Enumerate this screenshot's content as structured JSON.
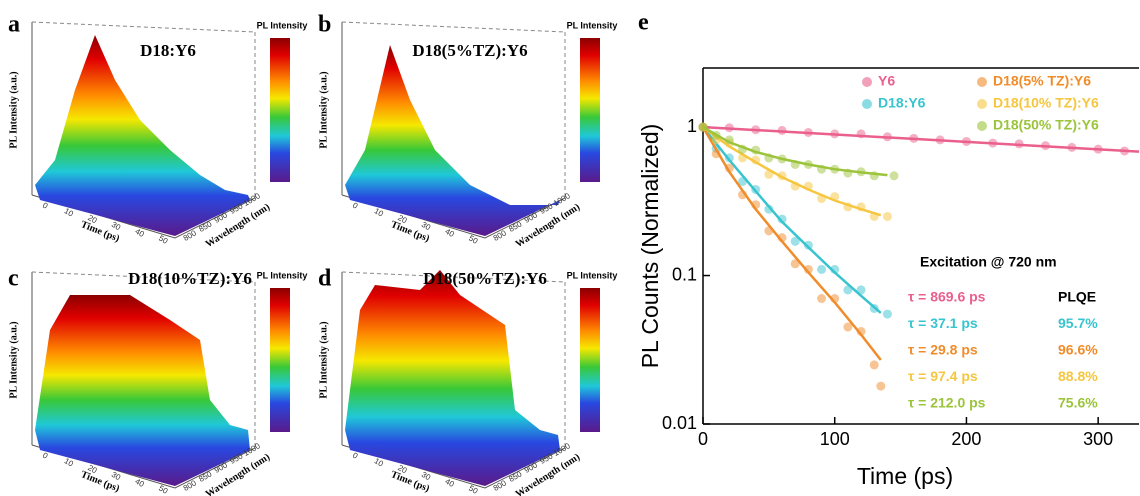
{
  "panels": [
    {
      "label": "a",
      "title": "D18:Y6"
    },
    {
      "label": "b",
      "title": "D18(5%TZ):Y6"
    },
    {
      "label": "c",
      "title": "D18(10%TZ):Y6"
    },
    {
      "label": "d",
      "title": "D18(50%TZ):Y6"
    }
  ],
  "colorbar_label": "PL Intensity",
  "z_label": "PL Intensity (a.u.)",
  "time_label": "Time (ps)",
  "wavelength_label": "Wavelength (nm)",
  "time_ticks": [
    0,
    10,
    20,
    30,
    40,
    50
  ],
  "wavelength_ticks": [
    800,
    850,
    900,
    950,
    1000
  ],
  "chart_data": {
    "type": "scatter",
    "label": "e",
    "xlabel": "Time (ps)",
    "ylabel": "PL Counts (Normalized)",
    "xlim": [
      0,
      331
    ],
    "ylim": [
      0.01,
      2.5
    ],
    "log_y": true,
    "xticks": [
      0,
      100,
      200,
      300
    ],
    "yticks": [
      0.01,
      0.1,
      1
    ],
    "series": [
      {
        "name": "Y6",
        "color": "#ea5f8c",
        "x": [
          0,
          20,
          40,
          60,
          80,
          100,
          120,
          140,
          160,
          180,
          200,
          220,
          240,
          260,
          280,
          300,
          320
        ],
        "values": [
          1.0,
          0.99,
          0.96,
          0.95,
          0.92,
          0.9,
          0.9,
          0.86,
          0.84,
          0.82,
          0.8,
          0.78,
          0.77,
          0.75,
          0.73,
          0.71,
          0.69
        ],
        "fit": {
          "x": [
            0,
            80,
            160,
            240,
            331
          ],
          "values": [
            1.0,
            0.912,
            0.832,
            0.759,
            0.684
          ]
        }
      },
      {
        "name": "D18:Y6",
        "color": "#38c4cf",
        "x": [
          0,
          10,
          20,
          30,
          40,
          50,
          60,
          70,
          80,
          90,
          100,
          110,
          120,
          130,
          140
        ],
        "values": [
          1.0,
          0.72,
          0.62,
          0.43,
          0.38,
          0.28,
          0.24,
          0.17,
          0.16,
          0.11,
          0.11,
          0.08,
          0.08,
          0.06,
          0.055
        ],
        "fit": {
          "x": [
            0,
            20,
            40,
            60,
            80,
            100,
            120,
            135
          ],
          "values": [
            1.0,
            0.6,
            0.37,
            0.23,
            0.155,
            0.105,
            0.073,
            0.056
          ]
        }
      },
      {
        "name": "D18(5% TZ):Y6",
        "color": "#f08c2a",
        "x": [
          0,
          10,
          20,
          30,
          40,
          50,
          60,
          70,
          80,
          90,
          100,
          110,
          120,
          130,
          135
        ],
        "values": [
          1.0,
          0.66,
          0.53,
          0.35,
          0.3,
          0.2,
          0.18,
          0.12,
          0.11,
          0.07,
          0.07,
          0.045,
          0.042,
          0.025,
          0.018
        ],
        "fit": {
          "x": [
            0,
            20,
            40,
            60,
            80,
            100,
            120,
            135
          ],
          "values": [
            1.0,
            0.5,
            0.28,
            0.17,
            0.105,
            0.066,
            0.04,
            0.027
          ]
        }
      },
      {
        "name": "D18(10% TZ):Y6",
        "color": "#f5c63e",
        "x": [
          0,
          10,
          20,
          30,
          40,
          50,
          60,
          70,
          80,
          90,
          100,
          110,
          120,
          130,
          140
        ],
        "values": [
          1.0,
          0.82,
          0.78,
          0.62,
          0.6,
          0.48,
          0.47,
          0.4,
          0.4,
          0.33,
          0.34,
          0.29,
          0.29,
          0.25,
          0.25
        ],
        "fit": {
          "x": [
            0,
            20,
            40,
            60,
            80,
            100,
            120,
            135
          ],
          "values": [
            1.0,
            0.74,
            0.58,
            0.46,
            0.38,
            0.32,
            0.28,
            0.255
          ]
        }
      },
      {
        "name": "D18(50% TZ):Y6",
        "color": "#9bc43b",
        "x": [
          0,
          10,
          20,
          30,
          40,
          50,
          60,
          70,
          80,
          90,
          100,
          110,
          120,
          130,
          145
        ],
        "values": [
          1.0,
          0.88,
          0.82,
          0.71,
          0.7,
          0.62,
          0.61,
          0.56,
          0.56,
          0.52,
          0.52,
          0.49,
          0.5,
          0.47,
          0.47
        ],
        "fit": {
          "x": [
            0,
            20,
            40,
            60,
            80,
            100,
            120,
            140
          ],
          "values": [
            1.0,
            0.79,
            0.68,
            0.61,
            0.56,
            0.52,
            0.495,
            0.475
          ]
        }
      }
    ],
    "annotations": {
      "excitation": "Excitation @ 720 nm",
      "plqe_header": "PLQE",
      "lifetimes": [
        "τ = 869.6 ps",
        "τ = 37.1 ps",
        "τ = 29.8 ps",
        "τ = 97.4 ps",
        "τ = 212.0 ps"
      ],
      "plqe": [
        "95.7%",
        "96.6%",
        "88.8%",
        "75.6%"
      ]
    }
  }
}
